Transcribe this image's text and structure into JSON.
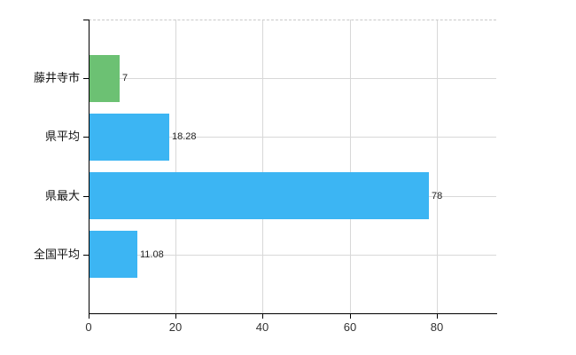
{
  "chart_data": {
    "type": "bar",
    "orientation": "horizontal",
    "title": "",
    "categories": [
      "藤井寺市",
      "県平均",
      "県最大",
      "全国平均"
    ],
    "values": [
      7,
      18.28,
      78,
      11.08
    ],
    "value_labels": [
      "7",
      "18.28",
      "78",
      "11.08"
    ],
    "bar_colors": [
      "#6cc173",
      "#3cb5f3",
      "#3cb5f3",
      "#3cb5f3"
    ],
    "xticks": [
      0,
      20,
      40,
      60,
      80
    ],
    "xtick_labels": [
      "0",
      "20",
      "40",
      "60",
      "80"
    ],
    "xlim": [
      0,
      93.7
    ],
    "grid": "on",
    "legend": "none",
    "background": "#ffffff",
    "axis_color": "#000000",
    "grid_color": "#d8d8d8",
    "top_border_color": "#c9c9c9",
    "top_border_style": "dashed",
    "category_label_color": "#111111",
    "tick_label_color": "#333333",
    "value_label_color": "#222222"
  }
}
